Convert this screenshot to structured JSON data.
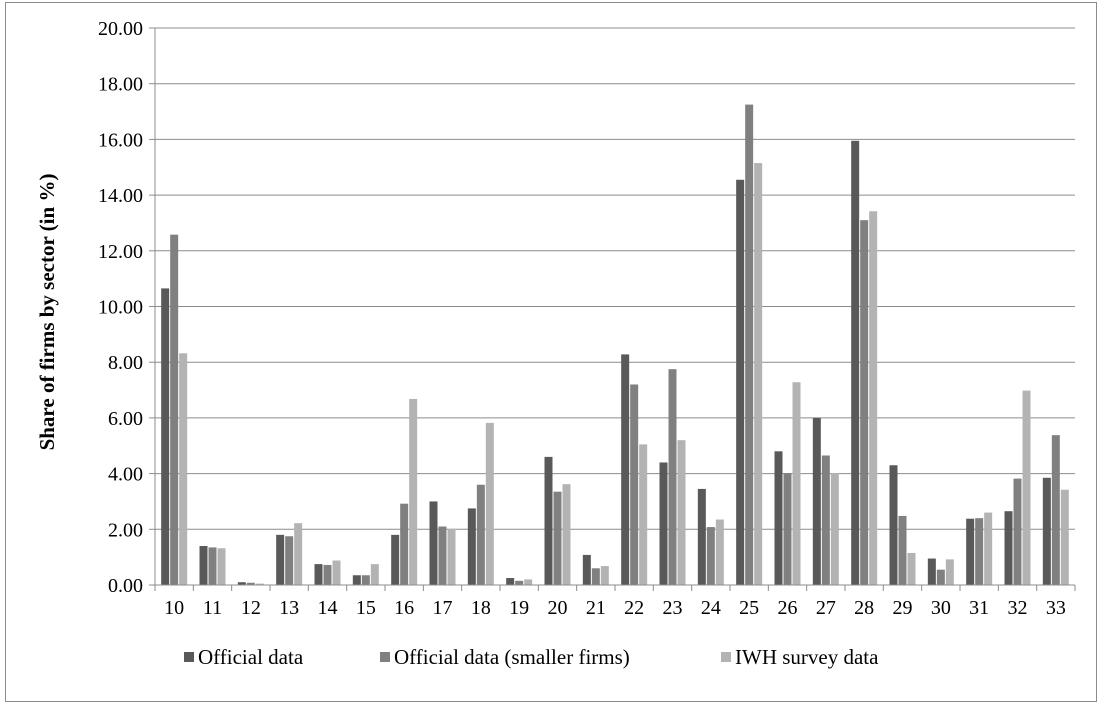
{
  "chart_data": {
    "type": "bar",
    "title": "",
    "xlabel": "",
    "ylabel": "Share of firms by sector (in %)",
    "ylim": [
      0,
      20
    ],
    "yticks": [
      "0.00",
      "2.00",
      "4.00",
      "6.00",
      "8.00",
      "10.00",
      "12.00",
      "14.00",
      "16.00",
      "18.00",
      "20.00"
    ],
    "grid": true,
    "legend_position": "bottom",
    "categories": [
      "10",
      "11",
      "12",
      "13",
      "14",
      "15",
      "16",
      "17",
      "18",
      "19",
      "20",
      "21",
      "22",
      "23",
      "24",
      "25",
      "26",
      "27",
      "28",
      "29",
      "30",
      "31",
      "32",
      "33"
    ],
    "series": [
      {
        "name": "Official data",
        "color": "#595959",
        "values": [
          10.65,
          1.4,
          0.1,
          1.8,
          0.75,
          0.35,
          1.8,
          3.0,
          2.75,
          0.25,
          4.6,
          1.08,
          8.28,
          4.4,
          3.45,
          14.55,
          4.8,
          6.0,
          15.95,
          4.3,
          0.95,
          2.38,
          2.65,
          3.85
        ]
      },
      {
        "name": "Official data (smaller firms)",
        "color": "#808080",
        "values": [
          12.58,
          1.35,
          0.08,
          1.75,
          0.72,
          0.35,
          2.92,
          2.1,
          3.6,
          0.15,
          3.35,
          0.6,
          7.2,
          7.75,
          2.08,
          17.25,
          4.02,
          4.65,
          13.1,
          2.48,
          0.55,
          2.4,
          3.82,
          5.38
        ]
      },
      {
        "name": "IWH survey data",
        "color": "#b3b3b3",
        "values": [
          8.32,
          1.32,
          0.05,
          2.22,
          0.88,
          0.75,
          6.68,
          2.02,
          5.82,
          0.2,
          3.62,
          0.68,
          5.05,
          5.2,
          2.35,
          15.15,
          7.28,
          4.02,
          13.42,
          1.15,
          0.92,
          2.6,
          6.98,
          3.42
        ]
      }
    ]
  }
}
